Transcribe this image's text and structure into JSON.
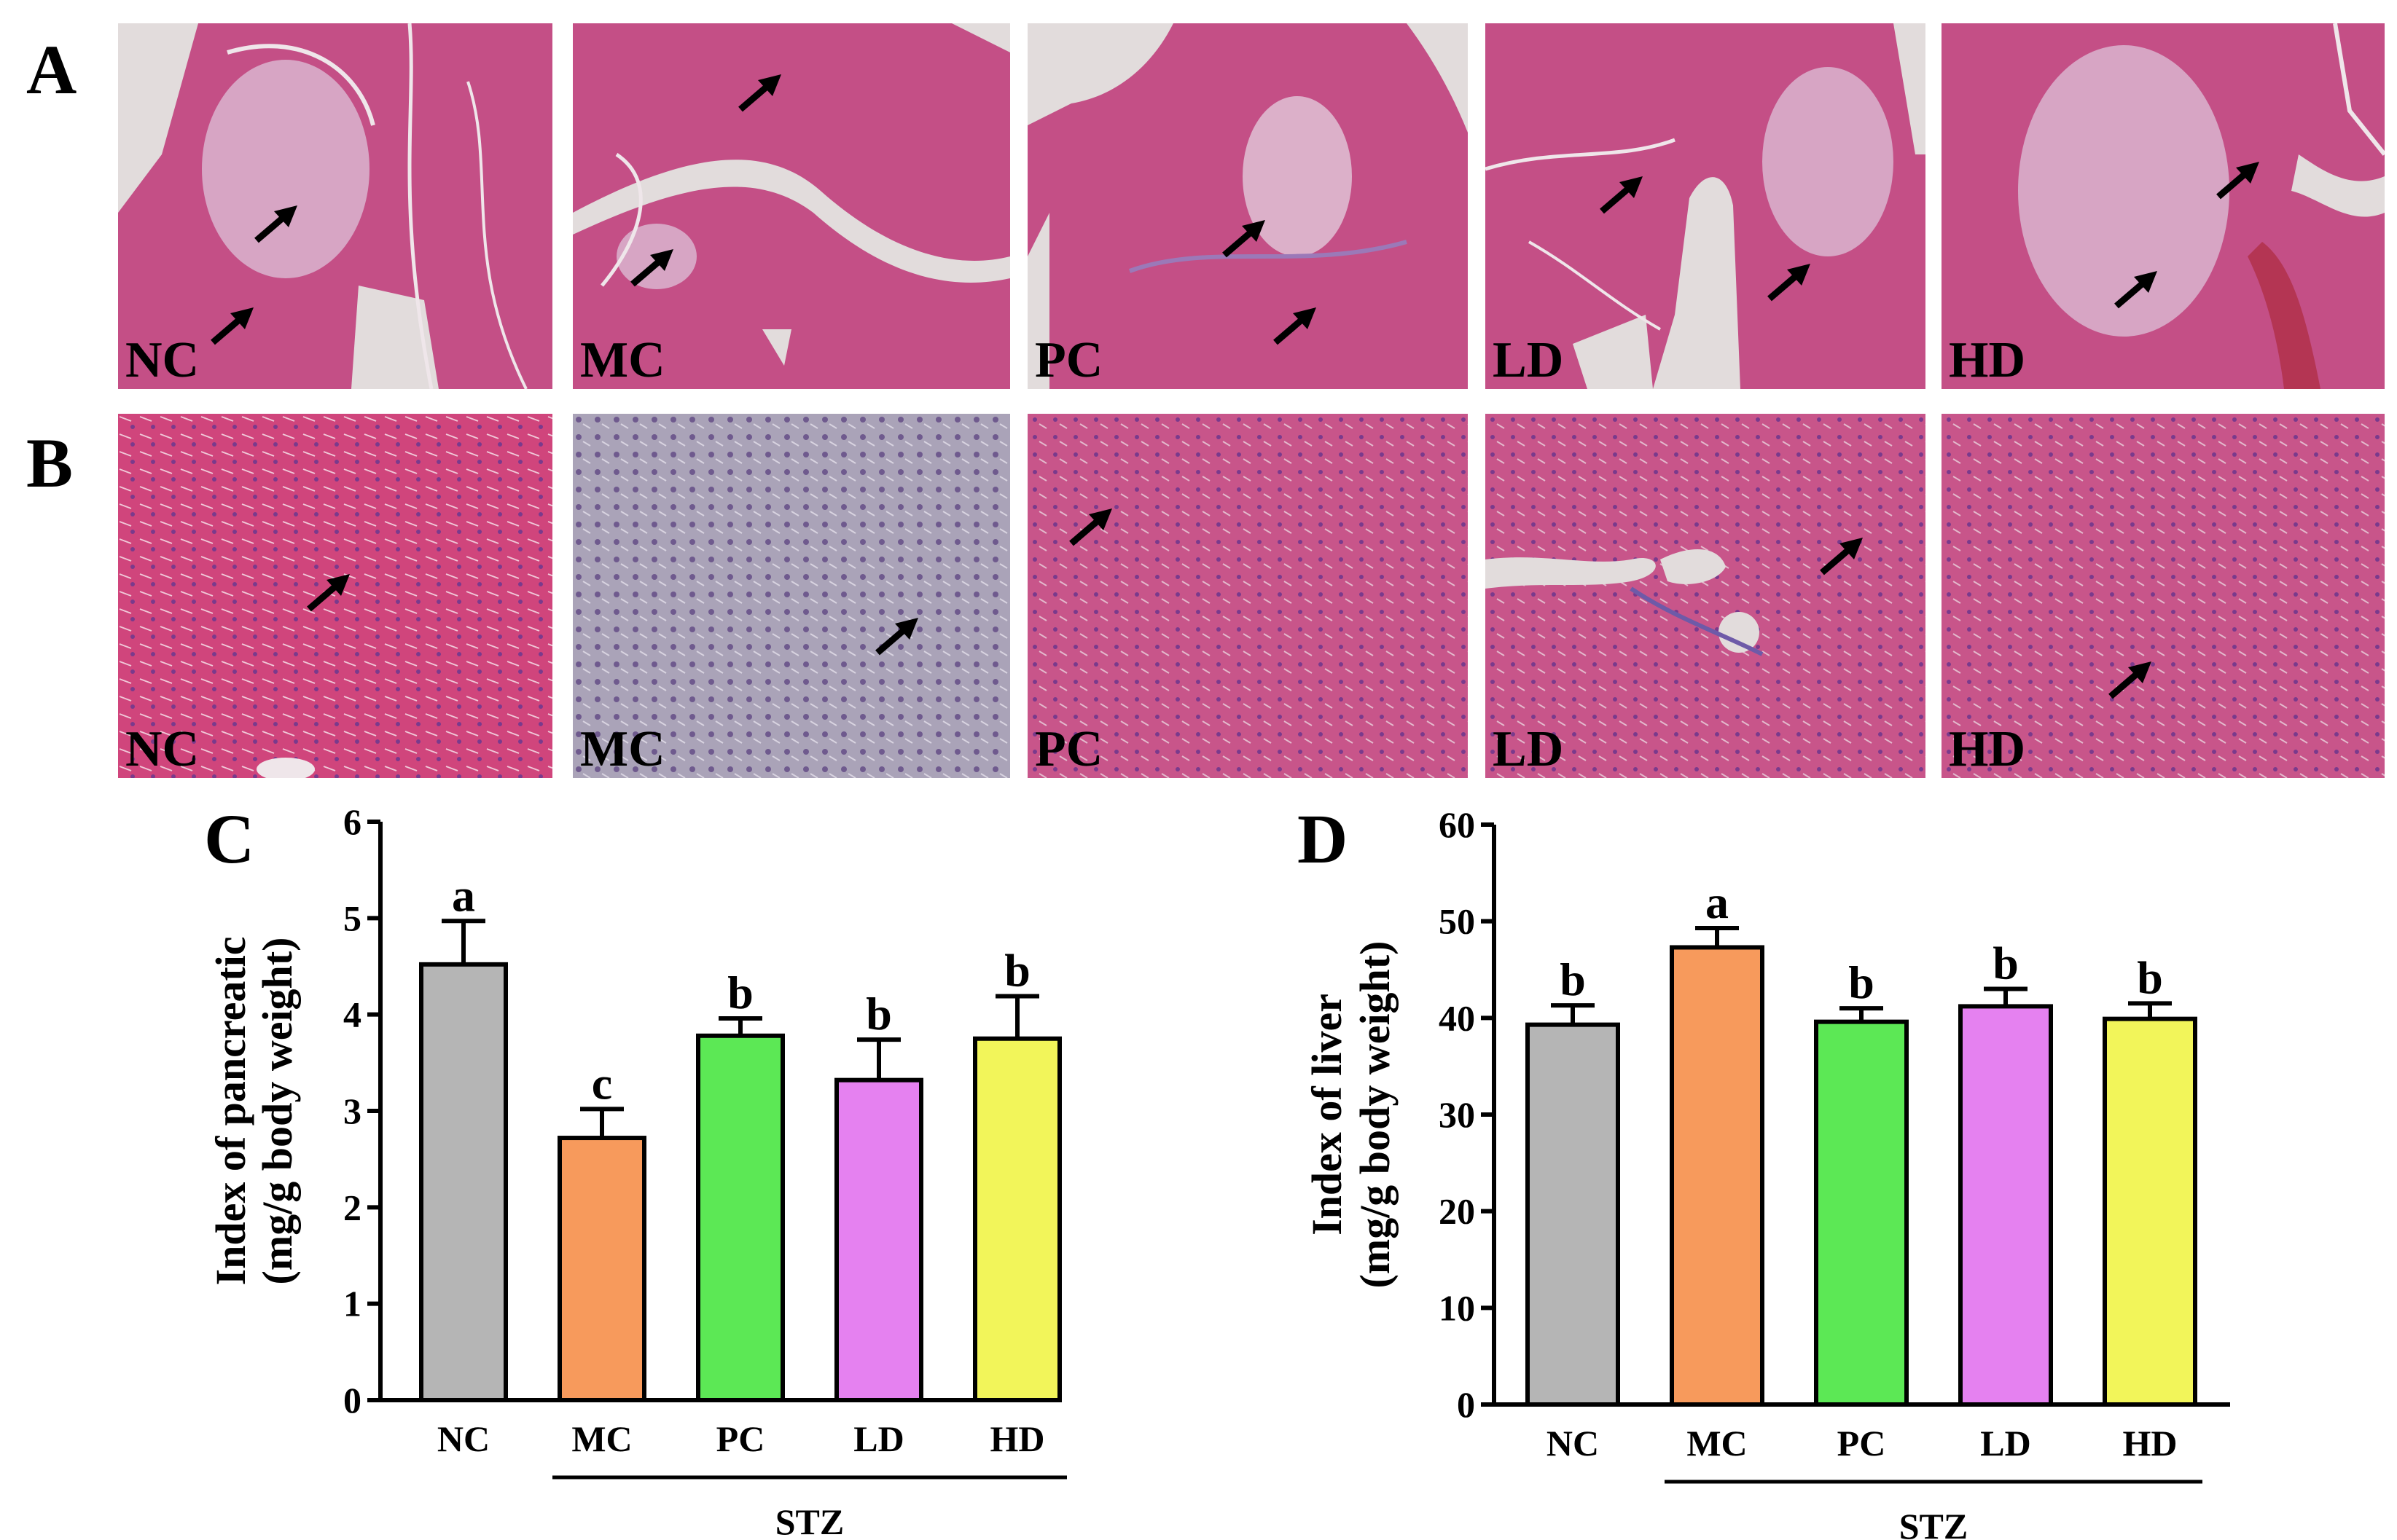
{
  "panels": {
    "A": {
      "letter": "A",
      "labels": [
        "NC",
        "MC",
        "PC",
        "LD",
        "HD"
      ]
    },
    "B": {
      "letter": "B",
      "labels": [
        "NC",
        "MC",
        "PC",
        "LD",
        "HD"
      ]
    }
  },
  "colors": {
    "NC": "#b5b5b5",
    "MC": "#f79a5c",
    "PC": "#5ce855",
    "LD": "#e581f0",
    "HD": "#f2f55a",
    "tissue_pancreas": "#c44f86",
    "tissue_liver_pink": "#d0457c",
    "tissue_liver_pale": "#a9a3b6",
    "background_gap": "#e2dcdc"
  },
  "chart_data": [
    {
      "panel_letter": "C",
      "type": "bar",
      "categories": [
        "NC",
        "MC",
        "PC",
        "LD",
        "HD"
      ],
      "values": [
        4.52,
        2.72,
        3.78,
        3.32,
        3.75
      ],
      "errors": [
        0.45,
        0.3,
        0.18,
        0.42,
        0.44
      ],
      "significance": [
        "a",
        "c",
        "b",
        "b",
        "b"
      ],
      "ylabel_line1": "Index of pancreatic",
      "ylabel_line2": "(mg/g body weight)",
      "ylim": [
        0,
        6
      ],
      "yticks": [
        "0",
        "1",
        "2",
        "3",
        "4",
        "5",
        "6"
      ],
      "group_label": "STZ",
      "group_span": [
        "MC",
        "HD"
      ]
    },
    {
      "panel_letter": "D",
      "type": "bar",
      "categories": [
        "NC",
        "MC",
        "PC",
        "LD",
        "HD"
      ],
      "values": [
        39.3,
        47.3,
        39.6,
        41.2,
        39.9
      ],
      "errors": [
        2.0,
        2.0,
        1.4,
        1.8,
        1.6
      ],
      "significance": [
        "b",
        "a",
        "b",
        "b",
        "b"
      ],
      "ylabel_line1": "Index of liver",
      "ylabel_line2": "(mg/g body weight)",
      "ylim": [
        0,
        60
      ],
      "yticks": [
        "0",
        "10",
        "20",
        "30",
        "40",
        "50",
        "60"
      ],
      "group_label": "STZ",
      "group_span": [
        "MC",
        "HD"
      ]
    }
  ]
}
